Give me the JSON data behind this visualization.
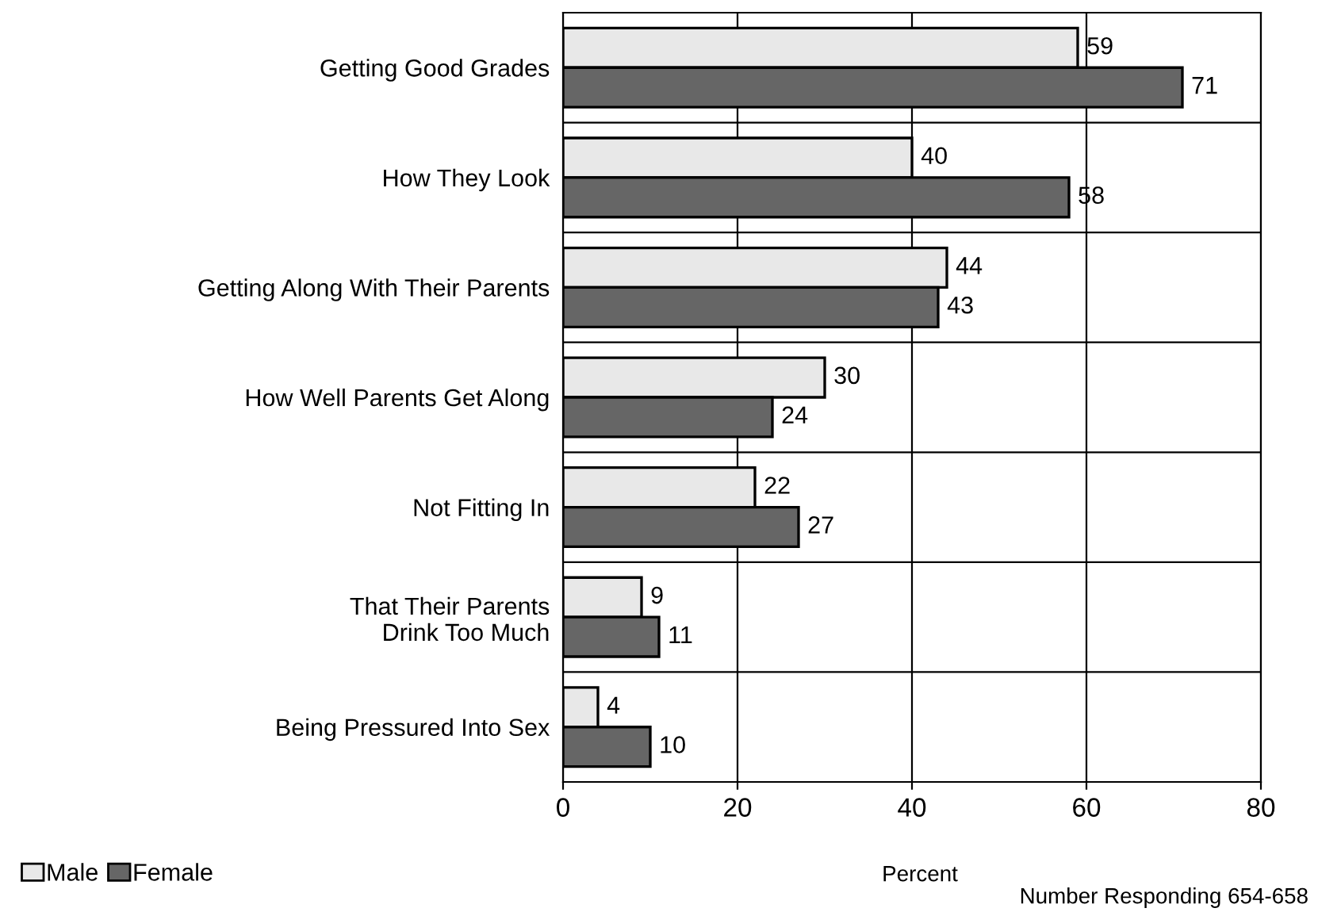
{
  "chart_data": {
    "type": "bar",
    "orientation": "horizontal",
    "xlabel": "Percent",
    "categories": [
      "Getting Good Grades",
      "How They Look",
      "Getting Along With Their Parents",
      "How Well Parents Get Along",
      "Not Fitting In",
      "That Their Parents\nDrink Too Much",
      "Being Pressured Into Sex"
    ],
    "series": [
      {
        "name": "Male",
        "color": "#e8e8e8",
        "values": [
          59,
          40,
          44,
          30,
          22,
          9,
          4
        ]
      },
      {
        "name": "Female",
        "color": "#666666",
        "values": [
          71,
          58,
          43,
          24,
          27,
          11,
          10
        ]
      }
    ],
    "xlim": [
      0,
      80
    ],
    "xticks": [
      0,
      20,
      40,
      60,
      80
    ],
    "grid": "x",
    "legend": "bottom left",
    "data_labels": true,
    "annotations": [
      "Number Responding 654-658"
    ]
  }
}
